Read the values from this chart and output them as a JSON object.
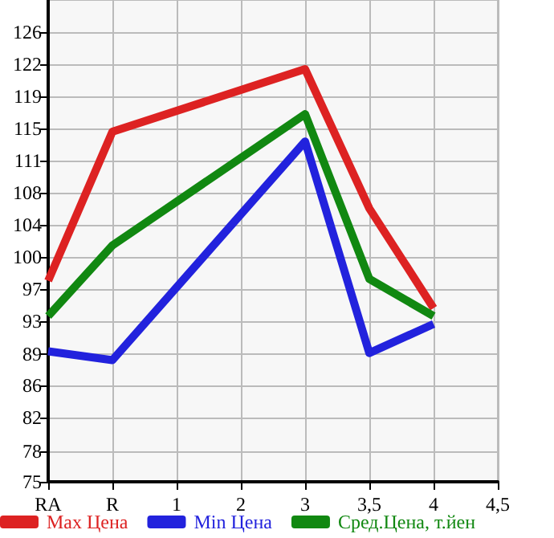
{
  "chart_data": {
    "type": "line",
    "categories": [
      "RA",
      "R",
      "1",
      "2",
      "3",
      "3,5",
      "4",
      "4,5"
    ],
    "series": [
      {
        "name": "Max Цена",
        "color": "#dd2222",
        "values": [
          97.8,
          114.7,
          null,
          null,
          121.8,
          106.0,
          94.7,
          null
        ]
      },
      {
        "name": "Min Цена",
        "color": "#2222dd",
        "values": [
          89.8,
          88.8,
          null,
          null,
          113.6,
          89.6,
          92.9,
          null
        ]
      },
      {
        "name": "Сред.Цена, т.йен",
        "color": "#118811",
        "values": [
          93.8,
          101.8,
          null,
          null,
          116.7,
          98.0,
          93.8,
          null
        ]
      }
    ],
    "ylim": [
      75,
      129.64
    ],
    "yticks": [
      75,
      {
        "value": 78.5,
        "label": "78"
      },
      {
        "value": 82.29,
        "label": "82"
      },
      {
        "value": 85.93,
        "label": "86"
      },
      {
        "value": 89.5,
        "label": "89"
      },
      {
        "value": 93.21,
        "label": "93"
      },
      {
        "value": 96.86,
        "label": "97"
      },
      {
        "value": 100.5,
        "label": "100"
      },
      {
        "value": 104.14,
        "label": "104"
      },
      {
        "value": 107.79,
        "label": "108"
      },
      {
        "value": 111.43,
        "label": "111"
      },
      {
        "value": 115.07,
        "label": "115"
      },
      {
        "value": 118.71,
        "label": "119"
      },
      {
        "value": 122.36,
        "label": "122"
      },
      126
    ],
    "grid": true,
    "legend": "bottom",
    "marker": "none",
    "line_style": "solid"
  }
}
